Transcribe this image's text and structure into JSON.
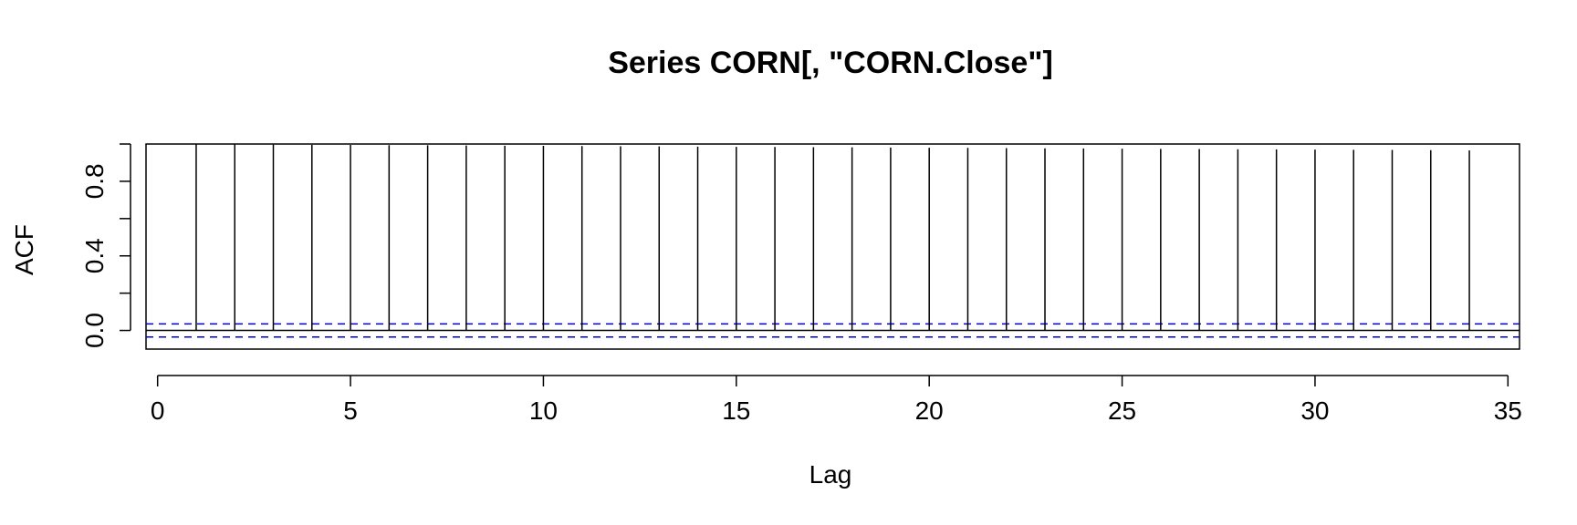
{
  "chart_data": {
    "type": "bar",
    "title": "Series  CORN[, \"CORN.Close\"]",
    "xlabel": "Lag",
    "ylabel": "ACF",
    "xlim": [
      -0.3,
      35.3
    ],
    "ylim": [
      -0.1,
      1.0
    ],
    "x_ticks": [
      0,
      5,
      10,
      15,
      20,
      25,
      30,
      35
    ],
    "x_tick_labels": [
      "0",
      "5",
      "10",
      "15",
      "20",
      "25",
      "30",
      "35"
    ],
    "y_ticks": [
      0.0,
      0.2,
      0.4,
      0.6,
      0.8,
      1.0
    ],
    "y_tick_labels": [
      {
        "value": 0.0,
        "label": "0.0"
      },
      {
        "value": 0.4,
        "label": "0.4"
      },
      {
        "value": 0.8,
        "label": "0.8"
      }
    ],
    "lags": [
      1,
      2,
      3,
      4,
      5,
      6,
      7,
      8,
      9,
      10,
      11,
      12,
      13,
      14,
      15,
      16,
      17,
      18,
      19,
      20,
      21,
      22,
      23,
      24,
      25,
      26,
      27,
      28,
      29,
      30,
      31,
      32,
      33,
      34
    ],
    "values": [
      0.999,
      0.998,
      0.997,
      0.996,
      0.995,
      0.994,
      0.993,
      0.992,
      0.991,
      0.99,
      0.989,
      0.988,
      0.987,
      0.986,
      0.985,
      0.984,
      0.983,
      0.982,
      0.981,
      0.98,
      0.979,
      0.978,
      0.977,
      0.976,
      0.975,
      0.974,
      0.973,
      0.972,
      0.971,
      0.97,
      0.969,
      0.968,
      0.967,
      0.966
    ],
    "confidence_bound": 0.035,
    "colors": {
      "bars": "#000000",
      "confidence": "#0000cc"
    },
    "grid": false
  }
}
